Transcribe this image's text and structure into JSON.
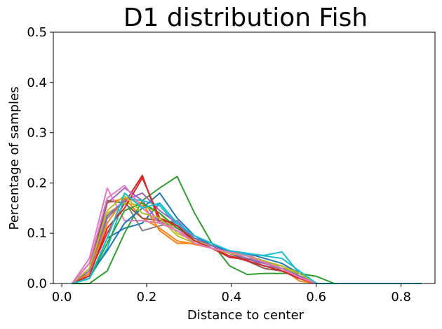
{
  "chart_data": {
    "type": "line",
    "title": "D1 distribution Fish",
    "xlabel": "Distance to center",
    "ylabel": "Percentage of samples",
    "xlim": [
      -0.02,
      0.88
    ],
    "ylim": [
      0.0,
      0.5
    ],
    "xticks": [
      0.0,
      0.2,
      0.4,
      0.6,
      0.8
    ],
    "xtick_labels": [
      "0.0",
      "0.2",
      "0.4",
      "0.6",
      "0.8"
    ],
    "yticks": [
      0.0,
      0.1,
      0.2,
      0.3,
      0.4,
      0.5
    ],
    "ytick_labels": [
      "0.0",
      "0.1",
      "0.2",
      "0.3",
      "0.4",
      "0.5"
    ],
    "grid": false,
    "legend": "none",
    "x": [
      0.024,
      0.065,
      0.107,
      0.148,
      0.19,
      0.231,
      0.272,
      0.313,
      0.354,
      0.396,
      0.437,
      0.478,
      0.519,
      0.56,
      0.601,
      0.643,
      0.684,
      0.725,
      0.766,
      0.807,
      0.848
    ],
    "series": [
      {
        "color": "#1f77b4",
        "values": [
          0,
          0.01,
          0.09,
          0.11,
          0.12,
          0.16,
          0.12,
          0.09,
          0.075,
          0.063,
          0.055,
          0.045,
          0.03,
          0.02,
          0,
          0,
          0,
          0,
          0,
          0,
          0
        ]
      },
      {
        "color": "#ff7f0e",
        "values": [
          0,
          0.04,
          0.16,
          0.17,
          0.13,
          0.11,
          0.085,
          0.078,
          0.07,
          0.065,
          0.055,
          0.04,
          0.03,
          0.005,
          0,
          0,
          0,
          0,
          0,
          0,
          0
        ]
      },
      {
        "color": "#2ca02c",
        "values": [
          0,
          0,
          0.025,
          0.1,
          0.165,
          0.19,
          0.213,
          0.14,
          0.08,
          0.035,
          0.018,
          0.02,
          0.02,
          0.02,
          0.014,
          0,
          0,
          0,
          0,
          0,
          0
        ]
      },
      {
        "color": "#d62728",
        "values": [
          0,
          0.02,
          0.1,
          0.16,
          0.215,
          0.12,
          0.115,
          0.08,
          0.07,
          0.052,
          0.048,
          0.04,
          0.03,
          0.01,
          0,
          0,
          0,
          0,
          0,
          0,
          0
        ]
      },
      {
        "color": "#9467bd",
        "values": [
          0,
          0.02,
          0.16,
          0.19,
          0.165,
          0.12,
          0.125,
          0.09,
          0.07,
          0.06,
          0.05,
          0.035,
          0.03,
          0.02,
          0,
          0,
          0,
          0,
          0,
          0,
          0
        ]
      },
      {
        "color": "#8c564b",
        "values": [
          0,
          0.03,
          0.165,
          0.16,
          0.13,
          0.125,
          0.12,
          0.085,
          0.075,
          0.06,
          0.045,
          0.03,
          0.025,
          0.01,
          0,
          0,
          0,
          0,
          0,
          0,
          0
        ]
      },
      {
        "color": "#e377c2",
        "values": [
          0,
          0.05,
          0.19,
          0.125,
          0.125,
          0.12,
          0.11,
          0.08,
          0.07,
          0.065,
          0.06,
          0.04,
          0.03,
          0.01,
          0,
          0,
          0,
          0,
          0,
          0,
          0
        ]
      },
      {
        "color": "#7f7f7f",
        "values": [
          0,
          0.02,
          0.13,
          0.165,
          0.105,
          0.115,
          0.12,
          0.085,
          0.075,
          0.06,
          0.05,
          0.045,
          0.025,
          0.01,
          0,
          0,
          0,
          0,
          0,
          0,
          0
        ]
      },
      {
        "color": "#bcbd22",
        "values": [
          0,
          0.02,
          0.14,
          0.16,
          0.155,
          0.14,
          0.1,
          0.085,
          0.075,
          0.06,
          0.055,
          0.04,
          0.035,
          0.015,
          0,
          0,
          0,
          0,
          0,
          0,
          0
        ]
      },
      {
        "color": "#17becf",
        "values": [
          0,
          0.01,
          0.07,
          0.17,
          0.165,
          0.155,
          0.115,
          0.09,
          0.08,
          0.06,
          0.058,
          0.056,
          0.063,
          0.02,
          0,
          0,
          0,
          0,
          0,
          0,
          0
        ]
      },
      {
        "color": "#1f77b4",
        "values": [
          0,
          0.015,
          0.065,
          0.12,
          0.15,
          0.18,
          0.13,
          0.095,
          0.075,
          0.065,
          0.06,
          0.05,
          0.04,
          0.02,
          0,
          0,
          0,
          0,
          0,
          0,
          0
        ]
      },
      {
        "color": "#ff7f0e",
        "values": [
          0,
          0.02,
          0.12,
          0.17,
          0.16,
          0.105,
          0.08,
          0.08,
          0.07,
          0.06,
          0.05,
          0.04,
          0.03,
          0.01,
          0,
          0,
          0,
          0,
          0,
          0,
          0
        ]
      },
      {
        "color": "#2ca02c",
        "values": [
          0,
          0.01,
          0.08,
          0.145,
          0.16,
          0.14,
          0.11,
          0.09,
          0.075,
          0.06,
          0.05,
          0.04,
          0.03,
          0.015,
          0,
          0,
          0,
          0,
          0,
          0,
          0
        ]
      },
      {
        "color": "#9467bd",
        "values": [
          0,
          0.025,
          0.135,
          0.165,
          0.18,
          0.145,
          0.12,
          0.09,
          0.075,
          0.06,
          0.05,
          0.04,
          0.03,
          0.015,
          0,
          0,
          0,
          0,
          0,
          0,
          0
        ]
      },
      {
        "color": "#d62728",
        "values": [
          0,
          0.015,
          0.11,
          0.15,
          0.21,
          0.13,
          0.115,
          0.085,
          0.07,
          0.055,
          0.045,
          0.035,
          0.025,
          0.01,
          0,
          0,
          0,
          0,
          0,
          0,
          0
        ]
      },
      {
        "color": "#bcbd22",
        "values": [
          0,
          0.03,
          0.145,
          0.175,
          0.14,
          0.13,
          0.095,
          0.08,
          0.07,
          0.06,
          0.055,
          0.045,
          0.035,
          0.02,
          0,
          0,
          0,
          0,
          0,
          0,
          0
        ]
      },
      {
        "color": "#e377c2",
        "values": [
          0,
          0.04,
          0.17,
          0.195,
          0.15,
          0.12,
          0.105,
          0.08,
          0.07,
          0.062,
          0.055,
          0.042,
          0.03,
          0.012,
          0,
          0,
          0,
          0,
          0,
          0,
          0
        ]
      },
      {
        "color": "#17becf",
        "values": [
          0,
          0.01,
          0.09,
          0.18,
          0.15,
          0.16,
          0.12,
          0.095,
          0.08,
          0.065,
          0.06,
          0.055,
          0.05,
          0.025,
          0,
          0,
          0,
          0,
          0,
          0,
          0
        ]
      }
    ]
  }
}
